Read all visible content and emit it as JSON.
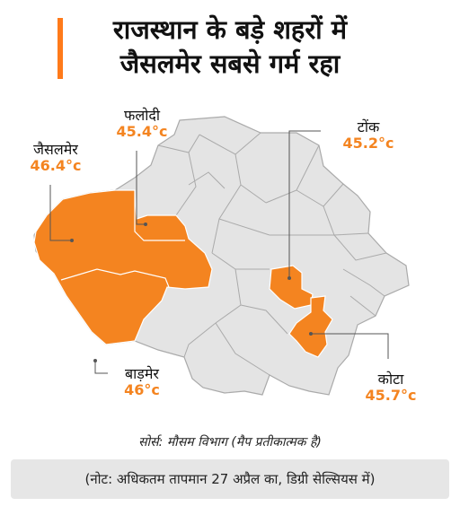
{
  "title": {
    "line1": "राजस्थान के बड़े शहरों में",
    "line2": "जैसलमेर सबसे गर्म रहा"
  },
  "colors": {
    "highlight": "#f48420",
    "district": "#e4e4e4",
    "border": "#aaaaaa",
    "accent_bar": "#ff7a1a"
  },
  "cities": [
    {
      "name": "फलोदी",
      "temp": "45.4°c"
    },
    {
      "name": "जैसलमेर",
      "temp": "46.4°c"
    },
    {
      "name": "टोंक",
      "temp": "45.2°c"
    },
    {
      "name": "बाड़मेर",
      "temp": "46°c"
    },
    {
      "name": "कोटा",
      "temp": "45.7°c"
    }
  ],
  "source": "सोर्स: मौसम विभाग (मैप प्रतीकात्मक है)",
  "note": "(नोट: अधिकतम तापमान 27 अप्रैल का, डिग्री सेल्सियस में)"
}
